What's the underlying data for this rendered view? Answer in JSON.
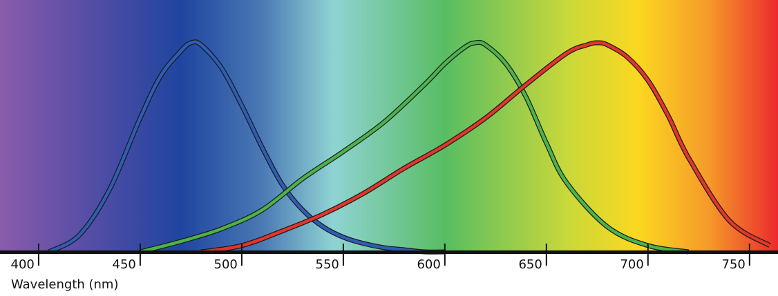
{
  "chart_data": {
    "type": "line",
    "xlabel": "Wavelength (nm)",
    "ylabel": "",
    "title": "",
    "xlim": [
      381,
      764
    ],
    "ylim": [
      0,
      1
    ],
    "grid": false,
    "legend": "none",
    "xticks": [
      400,
      450,
      500,
      550,
      600,
      650,
      700,
      750
    ],
    "xtick_labels": [
      "400",
      "450",
      "500",
      "550",
      "600",
      "650",
      "700",
      "750"
    ],
    "background_spectrum": {
      "colors": [
        "#8a5cab",
        "#5b4fa6",
        "#1f45a0",
        "#4a79b4",
        "#8fd3d3",
        "#58bd62",
        "#c8d83a",
        "#fbd820",
        "#f59a2a",
        "#ec2a2c"
      ],
      "at_nm": [
        381,
        420,
        470,
        510,
        545,
        600,
        660,
        695,
        730,
        764
      ]
    },
    "series": [
      {
        "color": "#2f5db5",
        "x": [
          405,
          420,
          435,
          450,
          460,
          470,
          475,
          480,
          490,
          500,
          510,
          520,
          530,
          540,
          550,
          560,
          570,
          580,
          590,
          600
        ],
        "y": [
          0.0,
          0.08,
          0.3,
          0.64,
          0.84,
          0.96,
          1.0,
          0.99,
          0.88,
          0.7,
          0.5,
          0.32,
          0.2,
          0.12,
          0.07,
          0.04,
          0.02,
          0.01,
          0.0,
          0.0
        ]
      },
      {
        "color": "#4cb34a",
        "x": [
          450,
          470,
          490,
          510,
          530,
          550,
          570,
          590,
          600,
          610,
          615,
          620,
          630,
          640,
          650,
          660,
          680,
          700,
          720
        ],
        "y": [
          0.0,
          0.05,
          0.11,
          0.2,
          0.35,
          0.48,
          0.62,
          0.8,
          0.9,
          0.98,
          1.0,
          0.99,
          0.9,
          0.74,
          0.52,
          0.33,
          0.12,
          0.03,
          0.0
        ]
      },
      {
        "color": "#e2352b",
        "x": [
          480,
          500,
          520,
          540,
          560,
          580,
          600,
          620,
          640,
          660,
          670,
          675,
          680,
          690,
          700,
          710,
          720,
          740,
          760
        ],
        "y": [
          0.0,
          0.03,
          0.1,
          0.18,
          0.28,
          0.4,
          0.51,
          0.64,
          0.8,
          0.95,
          0.99,
          1.0,
          0.99,
          0.93,
          0.82,
          0.65,
          0.45,
          0.15,
          0.03
        ]
      }
    ]
  }
}
